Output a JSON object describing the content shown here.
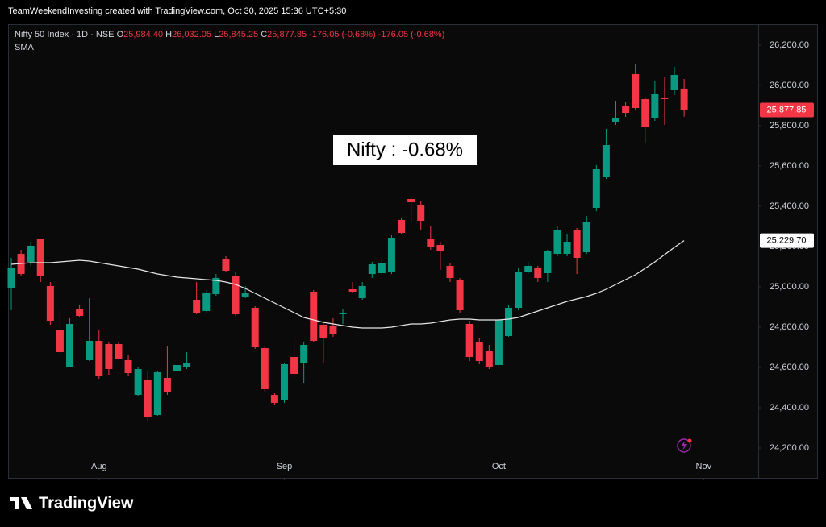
{
  "watermark": "TeamWeekendInvesting created with TradingView.com, Oct 30, 2025 15:36 UTC+5:30",
  "footer": {
    "logo": "TradingView"
  },
  "chart_data": {
    "type": "candlestick",
    "legend": {
      "symbol": "Nifty 50 Index · 1D · NSE",
      "items": [
        {
          "key": "O",
          "value": "25,984.40"
        },
        {
          "key": "H",
          "value": "26,032.05"
        },
        {
          "key": "L",
          "value": "25,845.25"
        },
        {
          "key": "C",
          "value": "25,877.85"
        }
      ],
      "changes": [
        "-176.05 (-0.68%)",
        "-176.05 (-0.68%)"
      ]
    },
    "annotation": "Nifty : -0.68%",
    "up_color": "#089981",
    "down_color": "#f23645",
    "open": [
      24996,
      25164,
      25124,
      25240,
      25004,
      24784,
      24604,
      24892,
      24636,
      24732,
      24716,
      24716,
      24636,
      24464,
      24536,
      24364,
      24548,
      24580,
      24600,
      24936,
      24880,
      24964,
      25136,
      25056,
      24948,
      24896,
      24696,
      24464,
      24436,
      24652,
      24620,
      24976,
      24812,
      24804,
      24864,
      24988,
      24944,
      25064,
      25068,
      25072,
      25332,
      25436,
      25408,
      25240,
      25208,
      25104,
      25032,
      24816,
      24728,
      24684,
      24612,
      24756,
      24896,
      25076,
      25092,
      25068,
      25164,
      25164,
      25280,
      25172,
      25392,
      25544,
      25816,
      25900,
      26056,
      25932,
      25840,
      25940,
      25976,
      25984.4
    ],
    "high": [
      25144,
      25184,
      25224,
      25240,
      25024,
      24884,
      24844,
      24912,
      24944,
      24784,
      24724,
      24728,
      24664,
      24604,
      24584,
      24584,
      24704,
      24664,
      24676,
      25024,
      24984,
      25064,
      25152,
      25072,
      25004,
      24904,
      24704,
      24472,
      24624,
      24744,
      24724,
      24984,
      24832,
      24844,
      24892,
      25024,
      25024,
      25124,
      25136,
      25256,
      25344,
      25444,
      25424,
      25304,
      25224,
      25116,
      25044,
      24832,
      24744,
      24712,
      24844,
      24912,
      25092,
      25124,
      25104,
      25184,
      25304,
      25264,
      25292,
      25352,
      25604,
      25784,
      25924,
      25920,
      26104,
      25944,
      26024,
      26044,
      26092,
      26032.05
    ],
    "low": [
      24884,
      25056,
      25104,
      25024,
      24812,
      24664,
      24604,
      24852,
      24632,
      24544,
      24564,
      24640,
      24556,
      24456,
      24336,
      24360,
      24464,
      24544,
      24592,
      24864,
      24872,
      24956,
      25072,
      24856,
      24944,
      24692,
      24480,
      24412,
      24424,
      24544,
      24524,
      24724,
      24624,
      24752,
      24816,
      24968,
      24936,
      25044,
      25060,
      25064,
      25264,
      25324,
      25284,
      25184,
      25084,
      25024,
      24872,
      24632,
      24616,
      24592,
      24592,
      24752,
      24884,
      25064,
      25024,
      25024,
      25152,
      25152,
      25064,
      25164,
      25376,
      25536,
      25804,
      25844,
      25880,
      25716,
      25824,
      25804,
      25952,
      25845.25
    ],
    "close": [
      25092,
      25064,
      25204,
      25052,
      24832,
      24676,
      24816,
      24856,
      24732,
      24560,
      24592,
      24644,
      24572,
      24592,
      24352,
      24576,
      24480,
      24612,
      24624,
      24872,
      24972,
      25044,
      25080,
      24864,
      24972,
      24700,
      24492,
      24424,
      24616,
      24568,
      24712,
      24732,
      24744,
      24764,
      24872,
      24976,
      25004,
      25112,
      25120,
      25244,
      25268,
      25420,
      25328,
      25196,
      25176,
      25044,
      24884,
      24652,
      24632,
      24604,
      24836,
      24896,
      25076,
      25104,
      25044,
      25176,
      25280,
      25224,
      25144,
      25320,
      25584,
      25704,
      25840,
      25864,
      25888,
      25796,
      25956,
      25932,
      26052,
      25877.85
    ],
    "sma": {
      "name": "SMA",
      "color": "#e6e6e6",
      "values": [
        25112,
        25116,
        25120,
        25120,
        25120,
        25124,
        25128,
        25132,
        25128,
        25120,
        25112,
        25104,
        25096,
        25088,
        25076,
        25064,
        25056,
        25048,
        25044,
        25040,
        25036,
        25032,
        25024,
        25012,
        24992,
        24968,
        24944,
        24920,
        24896,
        24872,
        24848,
        24836,
        24824,
        24816,
        24808,
        24800,
        24796,
        24796,
        24796,
        24800,
        24808,
        24816,
        24816,
        24820,
        24828,
        24836,
        24840,
        24840,
        24836,
        24836,
        24836,
        24840,
        24848,
        24864,
        24880,
        24896,
        24912,
        24928,
        24940,
        24952,
        24968,
        24988,
        25012,
        25036,
        25060,
        25092,
        25124,
        25160,
        25196,
        25229.7
      ]
    },
    "last_price_tag": {
      "value": 25877.85,
      "label": "25,877.85"
    },
    "sma_tag": {
      "value": 25229.7,
      "label": "25,229.70"
    },
    "xlim": [
      -0.33,
      76.6
    ],
    "xticks": [
      {
        "value": 9,
        "label": "Aug"
      },
      {
        "value": 28,
        "label": "Sep"
      },
      {
        "value": 50,
        "label": "Oct"
      },
      {
        "value": 71,
        "label": "Nov"
      }
    ],
    "ylim": [
      24052,
      26304
    ],
    "yticks": [
      {
        "value": 24200,
        "label": "24,200.00"
      },
      {
        "value": 24400,
        "label": "24,400.00"
      },
      {
        "value": 24600,
        "label": "24,600.00"
      },
      {
        "value": 24800,
        "label": "24,800.00"
      },
      {
        "value": 25000,
        "label": "25,000.00"
      },
      {
        "value": 25200,
        "label": "25,200.00"
      },
      {
        "value": 25400,
        "label": "25,400.00"
      },
      {
        "value": 25600,
        "label": "25,600.00"
      },
      {
        "value": 25800,
        "label": "25,800.00"
      },
      {
        "value": 26000,
        "label": "26,000.00"
      },
      {
        "value": 26200,
        "label": "26,200.00"
      }
    ]
  }
}
